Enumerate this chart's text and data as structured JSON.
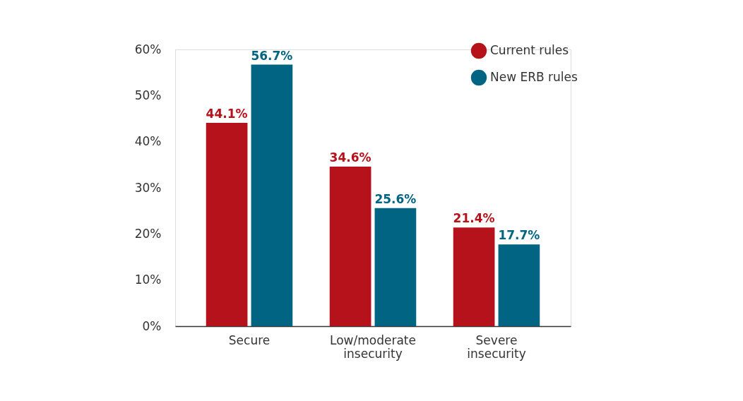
{
  "chart_data": {
    "type": "bar",
    "categories": [
      "Secure",
      "Low/moderate insecurity",
      "Severe insecurity"
    ],
    "series": [
      {
        "name": "Current rules",
        "color": "#b5121b",
        "values": [
          44.1,
          34.6,
          21.4
        ],
        "value_labels": [
          "44.1%",
          "34.6%",
          "21.4%"
        ]
      },
      {
        "name": "New ERB rules",
        "color": "#006482",
        "values": [
          56.7,
          25.6,
          17.7
        ],
        "value_labels": [
          "56.7%",
          "25.6%",
          "17.7%"
        ]
      }
    ],
    "ylim": [
      0,
      60
    ],
    "yticks": [
      {
        "value": 0,
        "label": "0%"
      },
      {
        "value": 10,
        "label": "10%"
      },
      {
        "value": 20,
        "label": "20%"
      },
      {
        "value": 30,
        "label": "30%"
      },
      {
        "value": 40,
        "label": "40%"
      },
      {
        "value": 50,
        "label": "50%"
      },
      {
        "value": 60,
        "label": "60%"
      }
    ],
    "grid": false,
    "legend": "top right"
  }
}
